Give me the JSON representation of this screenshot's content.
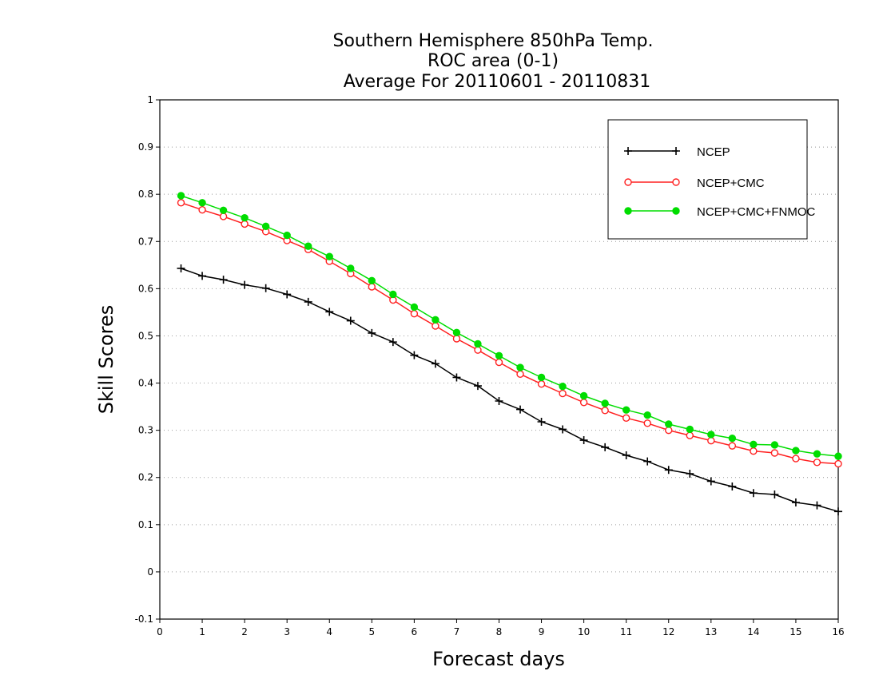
{
  "chart_data": {
    "type": "line",
    "title": [
      "Southern Hemisphere 850hPa Temp.",
      "ROC area (0-1)",
      "Average For 20110601 - 20110831"
    ],
    "xlabel": "Forecast days",
    "ylabel": "Skill Scores",
    "xlim": [
      0,
      16
    ],
    "ylim": [
      -0.1,
      1
    ],
    "x_ticks": [
      "0",
      "1",
      "2",
      "3",
      "4",
      "5",
      "6",
      "7",
      "8",
      "9",
      "10",
      "11",
      "12",
      "13",
      "14",
      "15",
      "16"
    ],
    "y_ticks": [
      "-0.1",
      "0",
      "0.1",
      "0.2",
      "0.3",
      "0.4",
      "0.5",
      "0.6",
      "0.7",
      "0.8",
      "0.9",
      "1"
    ],
    "grid": "horizontal dotted",
    "legend_position": "top-right",
    "x": [
      0.5,
      1,
      1.5,
      2,
      2.5,
      3,
      3.5,
      4,
      4.5,
      5,
      5.5,
      6,
      6.5,
      7,
      7.5,
      8,
      8.5,
      9,
      9.5,
      10,
      10.5,
      11,
      11.5,
      12,
      12.5,
      13,
      13.5,
      14,
      14.5,
      15,
      15.5,
      16
    ],
    "series": [
      {
        "name": "NCEP",
        "color": "#000000",
        "marker": "plus",
        "values": [
          0.643,
          0.627,
          0.619,
          0.608,
          0.601,
          0.588,
          0.572,
          0.551,
          0.532,
          0.506,
          0.487,
          0.459,
          0.441,
          0.412,
          0.394,
          0.362,
          0.344,
          0.318,
          0.302,
          0.279,
          0.264,
          0.247,
          0.234,
          0.216,
          0.208,
          0.192,
          0.181,
          0.167,
          0.164,
          0.147,
          0.141,
          0.128
        ]
      },
      {
        "name": "NCEP+CMC",
        "color": "#ff2020",
        "marker": "open-circle",
        "values": [
          0.782,
          0.767,
          0.753,
          0.737,
          0.721,
          0.702,
          0.683,
          0.658,
          0.632,
          0.604,
          0.576,
          0.547,
          0.521,
          0.494,
          0.47,
          0.444,
          0.419,
          0.398,
          0.378,
          0.359,
          0.342,
          0.326,
          0.315,
          0.3,
          0.289,
          0.278,
          0.267,
          0.256,
          0.252,
          0.24,
          0.232,
          0.229
        ]
      },
      {
        "name": "NCEP+CMC+FNMOC",
        "color": "#00dd00",
        "marker": "filled-circle",
        "values": [
          0.797,
          0.782,
          0.766,
          0.75,
          0.732,
          0.713,
          0.69,
          0.668,
          0.643,
          0.617,
          0.588,
          0.561,
          0.534,
          0.507,
          0.483,
          0.458,
          0.433,
          0.412,
          0.393,
          0.373,
          0.357,
          0.343,
          0.332,
          0.313,
          0.302,
          0.291,
          0.283,
          0.27,
          0.269,
          0.257,
          0.25,
          0.245
        ]
      }
    ]
  }
}
